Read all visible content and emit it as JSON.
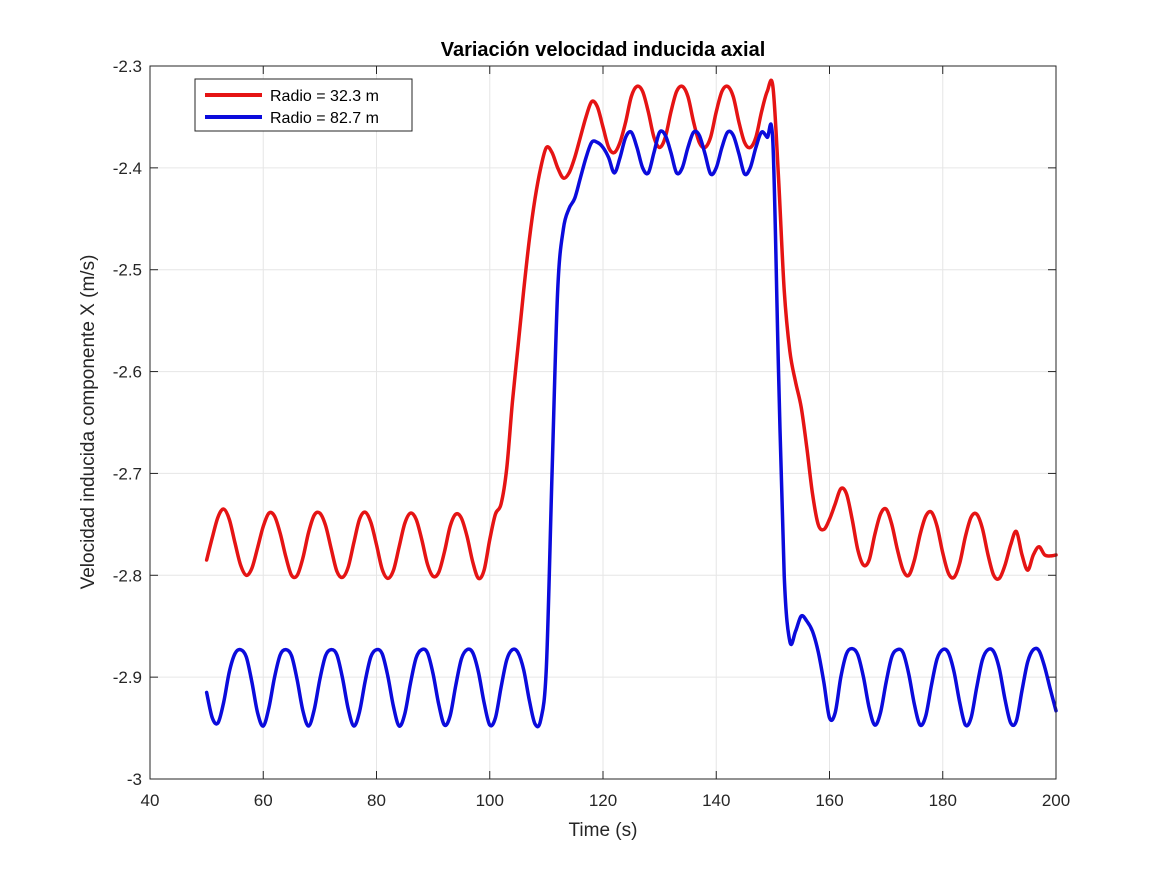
{
  "chart_data": {
    "type": "line",
    "title": "Variación velocidad inducida axial",
    "xlabel": "Time (s)",
    "ylabel": "Velocidad inducida componente X (m/s)",
    "xlim": [
      40,
      200
    ],
    "ylim": [
      -3,
      -2.3
    ],
    "xticks": [
      40,
      60,
      80,
      100,
      120,
      140,
      160,
      180,
      200
    ],
    "yticks": [
      -3,
      -2.9,
      -2.8,
      -2.7,
      -2.6,
      -2.5,
      -2.4,
      -2.3
    ],
    "xtick_labels": [
      "40",
      "60",
      "80",
      "100",
      "120",
      "140",
      "160",
      "180",
      "200"
    ],
    "ytick_labels": [
      "-3",
      "-2.9",
      "-2.8",
      "-2.7",
      "-2.6",
      "-2.5",
      "-2.4",
      "-2.3"
    ],
    "grid": true,
    "legend_position": "top-left",
    "series": [
      {
        "name": "Radio = 32.3 m",
        "color": "#e51414",
        "x": [
          50,
          51,
          52,
          53,
          54,
          55,
          56,
          57,
          58,
          59,
          60,
          61,
          62,
          63,
          64,
          65,
          66,
          67,
          68,
          69,
          70,
          71,
          72,
          73,
          74,
          75,
          76,
          77,
          78,
          79,
          80,
          81,
          82,
          83,
          84,
          85,
          86,
          87,
          88,
          89,
          90,
          91,
          92,
          93,
          94,
          95,
          96,
          97,
          98,
          99,
          100,
          101,
          102,
          103,
          104,
          105,
          106,
          107,
          108,
          109,
          110,
          111,
          112,
          113,
          114,
          115,
          116,
          117,
          118,
          119,
          120,
          121,
          122,
          123,
          124,
          125,
          126,
          127,
          128,
          129,
          130,
          131,
          132,
          133,
          134,
          135,
          136,
          137,
          138,
          139,
          140,
          141,
          142,
          143,
          144,
          145,
          146,
          147,
          148,
          149,
          150,
          151,
          152,
          153,
          154,
          155,
          156,
          157,
          158,
          159,
          160,
          161,
          162,
          163,
          164,
          165,
          166,
          167,
          168,
          169,
          170,
          171,
          172,
          173,
          174,
          175,
          176,
          177,
          178,
          179,
          180,
          181,
          182,
          183,
          184,
          185,
          186,
          187,
          188,
          189,
          190,
          191,
          192,
          193,
          194,
          195,
          196,
          197,
          198,
          199,
          200
        ],
        "y": [
          -2.785,
          -2.763,
          -2.743,
          -2.735,
          -2.745,
          -2.768,
          -2.79,
          -2.8,
          -2.793,
          -2.773,
          -2.752,
          -2.739,
          -2.742,
          -2.759,
          -2.782,
          -2.8,
          -2.8,
          -2.783,
          -2.758,
          -2.741,
          -2.739,
          -2.751,
          -2.774,
          -2.796,
          -2.802,
          -2.792,
          -2.768,
          -2.745,
          -2.738,
          -2.748,
          -2.77,
          -2.794,
          -2.803,
          -2.795,
          -2.772,
          -2.749,
          -2.739,
          -2.745,
          -2.765,
          -2.789,
          -2.801,
          -2.797,
          -2.777,
          -2.752,
          -2.74,
          -2.744,
          -2.762,
          -2.787,
          -2.803,
          -2.795,
          -2.765,
          -2.74,
          -2.73,
          -2.695,
          -2.63,
          -2.575,
          -2.52,
          -2.47,
          -2.43,
          -2.4,
          -2.38,
          -2.385,
          -2.4,
          -2.41,
          -2.405,
          -2.39,
          -2.37,
          -2.35,
          -2.335,
          -2.34,
          -2.36,
          -2.38,
          -2.385,
          -2.375,
          -2.355,
          -2.33,
          -2.32,
          -2.325,
          -2.345,
          -2.37,
          -2.38,
          -2.37,
          -2.345,
          -2.325,
          -2.32,
          -2.33,
          -2.355,
          -2.375,
          -2.38,
          -2.37,
          -2.345,
          -2.325,
          -2.32,
          -2.33,
          -2.355,
          -2.375,
          -2.38,
          -2.37,
          -2.345,
          -2.325,
          -2.32,
          -2.41,
          -2.52,
          -2.58,
          -2.61,
          -2.635,
          -2.675,
          -2.72,
          -2.75,
          -2.755,
          -2.745,
          -2.73,
          -2.715,
          -2.72,
          -2.745,
          -2.775,
          -2.79,
          -2.785,
          -2.76,
          -2.74,
          -2.735,
          -2.75,
          -2.775,
          -2.795,
          -2.8,
          -2.785,
          -2.76,
          -2.742,
          -2.738,
          -2.752,
          -2.778,
          -2.798,
          -2.802,
          -2.788,
          -2.762,
          -2.743,
          -2.74,
          -2.754,
          -2.78,
          -2.8,
          -2.803,
          -2.79,
          -2.77,
          -2.757,
          -2.78,
          -2.795,
          -2.78,
          -2.772,
          -2.78,
          -2.781,
          -2.78
        ],
        "note_shape": "sinusoidal"
      },
      {
        "name": "Radio = 82.7 m",
        "color": "#0b0bdc",
        "x": [
          50,
          51,
          52,
          53,
          54,
          55,
          56,
          57,
          58,
          59,
          60,
          61,
          62,
          63,
          64,
          65,
          66,
          67,
          68,
          69,
          70,
          71,
          72,
          73,
          74,
          75,
          76,
          77,
          78,
          79,
          80,
          81,
          82,
          83,
          84,
          85,
          86,
          87,
          88,
          89,
          90,
          91,
          92,
          93,
          94,
          95,
          96,
          97,
          98,
          99,
          100,
          101,
          102,
          103,
          104,
          105,
          106,
          107,
          108,
          109,
          110,
          111,
          112,
          113,
          114,
          115,
          116,
          117,
          118,
          119,
          120,
          121,
          122,
          123,
          124,
          125,
          126,
          127,
          128,
          129,
          130,
          131,
          132,
          133,
          134,
          135,
          136,
          137,
          138,
          139,
          140,
          141,
          142,
          143,
          144,
          145,
          146,
          147,
          148,
          149,
          150,
          151,
          152,
          153,
          154,
          155,
          156,
          157,
          158,
          159,
          160,
          161,
          162,
          163,
          164,
          165,
          166,
          167,
          168,
          169,
          170,
          171,
          172,
          173,
          174,
          175,
          176,
          177,
          178,
          179,
          180,
          181,
          182,
          183,
          184,
          185,
          186,
          187,
          188,
          189,
          190,
          191,
          192,
          193,
          194,
          195,
          196,
          197,
          198,
          199,
          200
        ],
        "y": [
          -2.915,
          -2.94,
          -2.945,
          -2.925,
          -2.895,
          -2.877,
          -2.873,
          -2.88,
          -2.905,
          -2.935,
          -2.948,
          -2.93,
          -2.9,
          -2.878,
          -2.873,
          -2.879,
          -2.903,
          -2.933,
          -2.948,
          -2.932,
          -2.902,
          -2.879,
          -2.873,
          -2.878,
          -2.901,
          -2.931,
          -2.948,
          -2.934,
          -2.904,
          -2.88,
          -2.873,
          -2.877,
          -2.899,
          -2.929,
          -2.948,
          -2.936,
          -2.906,
          -2.881,
          -2.873,
          -2.876,
          -2.897,
          -2.927,
          -2.947,
          -2.938,
          -2.908,
          -2.882,
          -2.873,
          -2.876,
          -2.895,
          -2.925,
          -2.947,
          -2.94,
          -2.91,
          -2.883,
          -2.873,
          -2.876,
          -2.893,
          -2.923,
          -2.946,
          -2.942,
          -2.89,
          -2.7,
          -2.52,
          -2.46,
          -2.44,
          -2.43,
          -2.41,
          -2.39,
          -2.375,
          -2.375,
          -2.38,
          -2.39,
          -2.405,
          -2.39,
          -2.37,
          -2.365,
          -2.38,
          -2.4,
          -2.405,
          -2.385,
          -2.365,
          -2.368,
          -2.385,
          -2.405,
          -2.4,
          -2.38,
          -2.365,
          -2.368,
          -2.386,
          -2.406,
          -2.4,
          -2.38,
          -2.365,
          -2.368,
          -2.386,
          -2.406,
          -2.4,
          -2.38,
          -2.365,
          -2.37,
          -2.375,
          -2.6,
          -2.8,
          -2.865,
          -2.855,
          -2.84,
          -2.845,
          -2.855,
          -2.875,
          -2.905,
          -2.94,
          -2.935,
          -2.9,
          -2.877,
          -2.872,
          -2.878,
          -2.9,
          -2.93,
          -2.947,
          -2.935,
          -2.905,
          -2.88,
          -2.873,
          -2.876,
          -2.897,
          -2.927,
          -2.947,
          -2.938,
          -2.908,
          -2.882,
          -2.873,
          -2.876,
          -2.895,
          -2.925,
          -2.947,
          -2.94,
          -2.91,
          -2.883,
          -2.873,
          -2.875,
          -2.892,
          -2.922,
          -2.945,
          -2.943,
          -2.913,
          -2.885,
          -2.873,
          -2.874,
          -2.89,
          -2.912,
          -2.933
        ],
        "note_shape": "sinusoidal"
      }
    ]
  }
}
